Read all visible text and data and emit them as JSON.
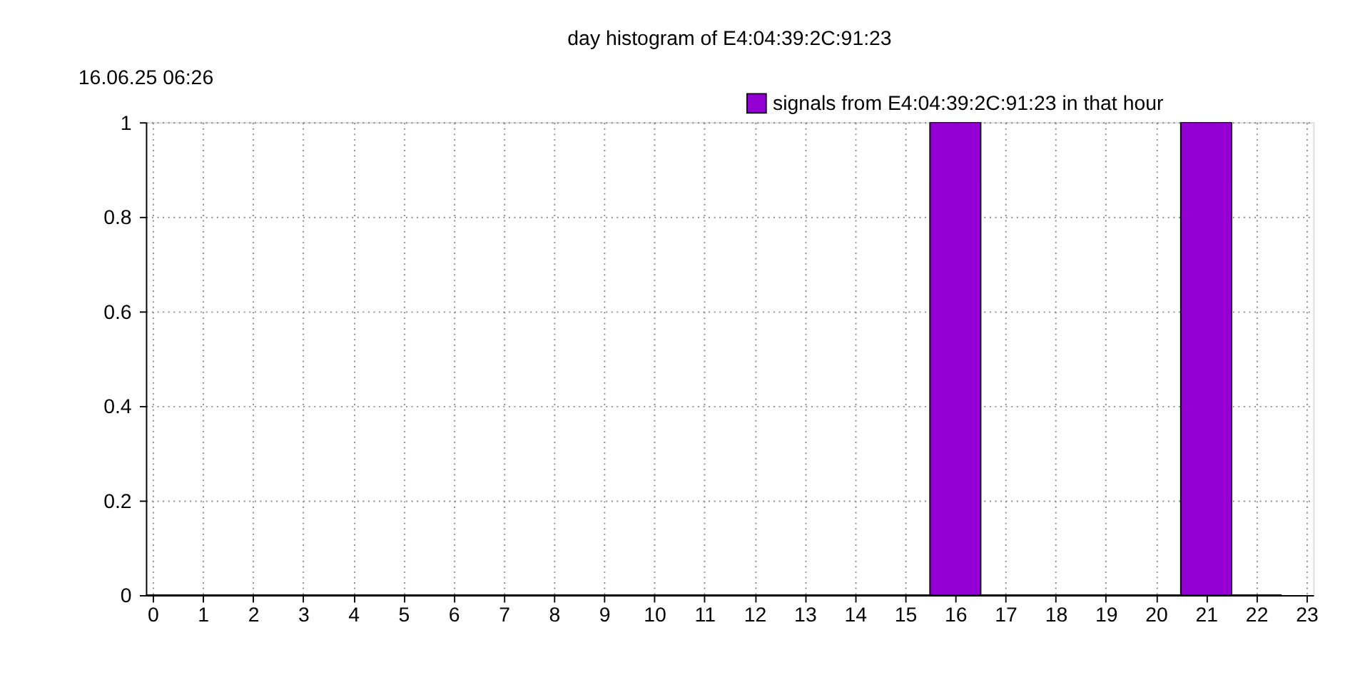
{
  "chart_data": {
    "type": "bar",
    "title": "day histogram of E4:04:39:2C:91:23",
    "annotations": [
      "16.06.25 06:26"
    ],
    "x": [
      0,
      1,
      2,
      3,
      4,
      5,
      6,
      7,
      8,
      9,
      10,
      11,
      12,
      13,
      14,
      15,
      16,
      17,
      18,
      19,
      20,
      21,
      22
    ],
    "series": [
      {
        "name": "signals from E4:04:39:2C:91:23 in that hour",
        "color": "#9400d3",
        "values": [
          0,
          0,
          0,
          0,
          0,
          0,
          0,
          0,
          0,
          0,
          0,
          0,
          0,
          0,
          0,
          0,
          1,
          0,
          0,
          0,
          0,
          1,
          0
        ]
      }
    ],
    "xlim": [
      0,
      23
    ],
    "xticks": [
      0,
      1,
      2,
      3,
      4,
      5,
      6,
      7,
      8,
      9,
      10,
      11,
      12,
      13,
      14,
      15,
      16,
      17,
      18,
      19,
      20,
      21,
      22,
      23
    ],
    "ylim": [
      0,
      1
    ],
    "yticks": [
      0,
      0.2,
      0.4,
      0.6,
      0.8,
      1
    ],
    "grid": true,
    "legend": "top right"
  }
}
